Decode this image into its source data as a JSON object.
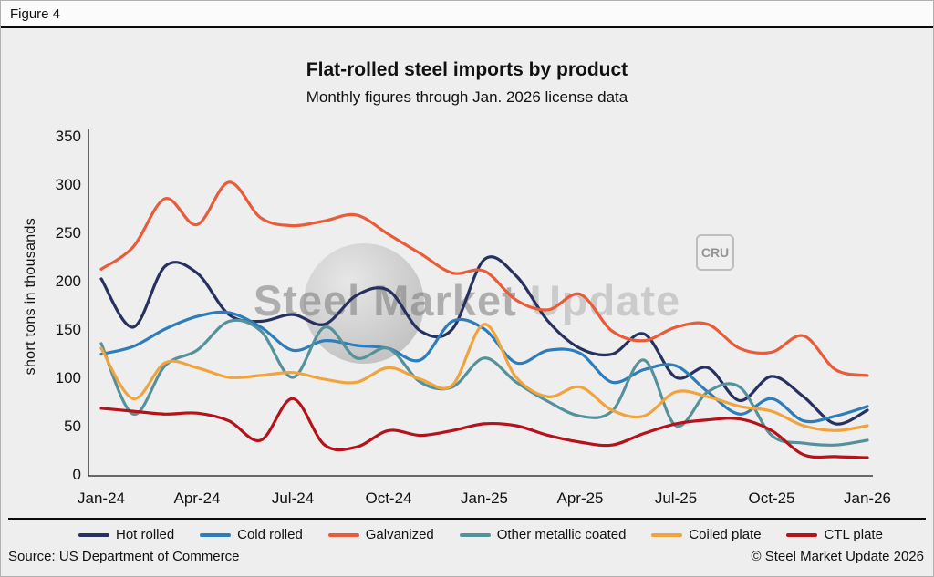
{
  "figure_label": "Figure 4",
  "watermark": {
    "part1": "Steel Market",
    "part2": "Update",
    "badge": "CRU"
  },
  "footer": {
    "source": "Source: US Department of Commerce",
    "copyright": "© Steel Market Update 2026"
  },
  "chart_data": {
    "type": "line",
    "title": "Flat-rolled steel imports by product",
    "subtitle": "Monthly figures through Jan. 2026 license data",
    "xlabel": "",
    "ylabel": "short tons in thousands",
    "ylim": [
      0,
      350
    ],
    "ytick_step": 50,
    "grid": false,
    "legend_position": "bottom",
    "x": [
      "Jan-24",
      "Feb-24",
      "Mar-24",
      "Apr-24",
      "May-24",
      "Jun-24",
      "Jul-24",
      "Aug-24",
      "Sep-24",
      "Oct-24",
      "Nov-24",
      "Dec-24",
      "Jan-25",
      "Feb-25",
      "Mar-25",
      "Apr-25",
      "May-25",
      "Jun-25",
      "Jul-25",
      "Aug-25",
      "Sep-25",
      "Oct-25",
      "Nov-25",
      "Dec-25",
      "Jan-26"
    ],
    "xtick_labels": [
      "Jan-24",
      "Apr-24",
      "Jul-24",
      "Oct-24",
      "Jan-25",
      "Apr-25",
      "Jul-25",
      "Oct-25",
      "Jan-26"
    ],
    "series": [
      {
        "name": "Hot rolled",
        "color": "#27315f",
        "values": [
          202,
          152,
          215,
          208,
          165,
          158,
          165,
          155,
          185,
          190,
          148,
          150,
          222,
          205,
          158,
          130,
          124,
          145,
          100,
          110,
          76,
          101,
          80,
          52,
          66
        ]
      },
      {
        "name": "Cold rolled",
        "color": "#2d7dbb",
        "values": [
          124,
          132,
          150,
          163,
          167,
          152,
          128,
          138,
          133,
          130,
          118,
          158,
          150,
          115,
          128,
          125,
          95,
          108,
          112,
          85,
          62,
          78,
          55,
          60,
          70
        ]
      },
      {
        "name": "Galvanized",
        "color": "#e85c3a",
        "values": [
          212,
          235,
          285,
          258,
          302,
          265,
          257,
          262,
          268,
          248,
          228,
          208,
          210,
          180,
          170,
          186,
          148,
          138,
          152,
          155,
          130,
          126,
          143,
          108,
          102
        ]
      },
      {
        "name": "Other metallic coated",
        "color": "#55919b",
        "values": [
          135,
          62,
          112,
          128,
          158,
          148,
          100,
          152,
          120,
          130,
          95,
          90,
          120,
          95,
          75,
          60,
          65,
          118,
          50,
          85,
          90,
          40,
          32,
          30,
          35
        ]
      },
      {
        "name": "Coiled plate",
        "color": "#f0a43e",
        "values": [
          130,
          78,
          115,
          110,
          100,
          102,
          105,
          98,
          95,
          110,
          98,
          92,
          155,
          100,
          80,
          90,
          66,
          60,
          85,
          80,
          70,
          65,
          50,
          45,
          50
        ]
      },
      {
        "name": "CTL plate",
        "color": "#b5121b",
        "values": [
          68,
          65,
          62,
          63,
          55,
          35,
          78,
          30,
          28,
          45,
          40,
          45,
          52,
          50,
          40,
          33,
          30,
          42,
          52,
          56,
          57,
          45,
          20,
          18,
          17
        ]
      }
    ]
  }
}
